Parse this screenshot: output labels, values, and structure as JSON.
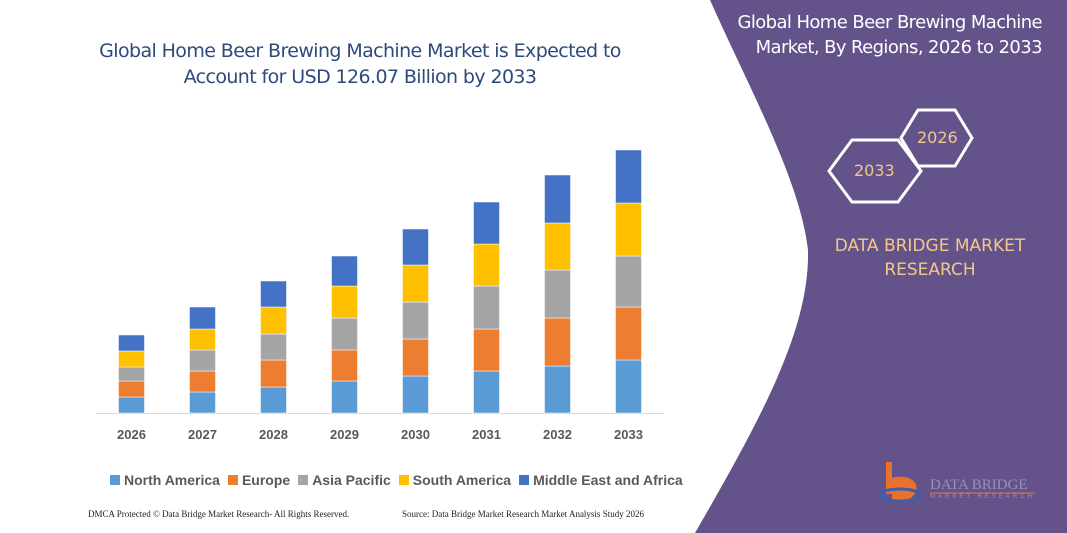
{
  "colors": {
    "panel": "#64528a",
    "accent_text": "#f2c98a",
    "title": "#2e4a7a"
  },
  "chart_data": {
    "type": "bar",
    "stacked": true,
    "title": "Global Home Beer Brewing Machine Market is Expected to Account for USD 126.07 Billion by 2033",
    "xlabel": "",
    "ylabel": "",
    "y_axis_shown": false,
    "grid": false,
    "legend_position": "bottom",
    "categories": [
      "2026",
      "2027",
      "2028",
      "2029",
      "2030",
      "2031",
      "2032",
      "2033"
    ],
    "series": [
      {
        "name": "North America",
        "color": "#5b9bd5",
        "values": [
          16,
          21,
          26,
          32,
          37,
          42,
          47,
          53
        ]
      },
      {
        "name": "Europe",
        "color": "#ed7d31",
        "values": [
          16,
          21,
          27,
          31,
          37,
          42,
          48,
          53
        ]
      },
      {
        "name": "Asia Pacific",
        "color": "#a5a5a5",
        "values": [
          14,
          21,
          26,
          32,
          37,
          43,
          48,
          51
        ]
      },
      {
        "name": "South America",
        "color": "#ffc000",
        "values": [
          16,
          21,
          27,
          32,
          37,
          42,
          47,
          53
        ]
      },
      {
        "name": "Middle East and Africa",
        "color": "#4472c4",
        "values": [
          16,
          22,
          26,
          30,
          36,
          42,
          48,
          53
        ]
      }
    ]
  },
  "panel": {
    "title": "Global Home Beer Brewing Machine Market, By Regions, 2026 to 2033",
    "hex_start": "2026",
    "hex_end": "2033",
    "brand": "DATA BRIDGE MARKET RESEARCH",
    "logo_text": "DATA BRIDGE",
    "logo_sub": "MARKET RESEARCH"
  },
  "footer": {
    "copyright": "DMCA Protected © Data Bridge Market Research- All Rights Reserved.",
    "source": "Source: Data Bridge Market Research Market Analysis Study 2026"
  }
}
